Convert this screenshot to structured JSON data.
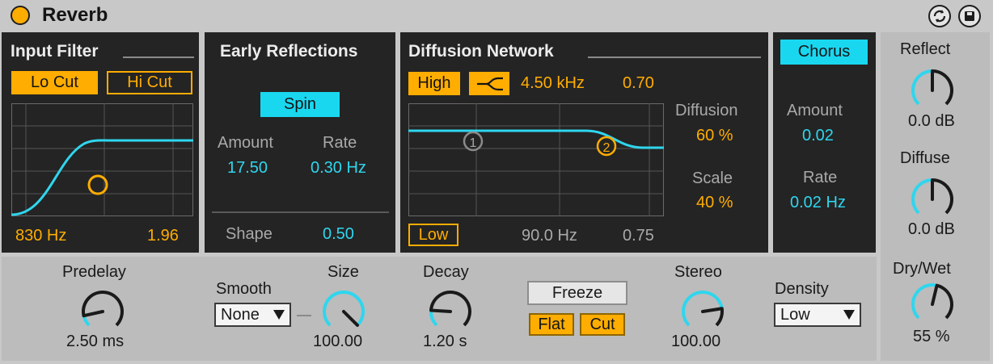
{
  "device": {
    "title": "Reverb"
  },
  "input_filter": {
    "title": "Input Filter",
    "lo_cut": "Lo Cut",
    "hi_cut": "Hi Cut",
    "freq": "830 Hz",
    "q": "1.96"
  },
  "early_reflections": {
    "title": "Early Reflections",
    "spin": "Spin",
    "amount_label": "Amount",
    "amount_value": "17.50",
    "rate_label": "Rate",
    "rate_value": "0.30 Hz",
    "shape_label": "Shape",
    "shape_value": "0.50"
  },
  "diffusion_network": {
    "title": "Diffusion Network",
    "high": "High",
    "high_freq": "4.50 kHz",
    "high_value": "0.70",
    "low": "Low",
    "low_freq": "90.0 Hz",
    "low_value": "0.75",
    "diffusion_label": "Diffusion",
    "diffusion_value": "60 %",
    "scale_label": "Scale",
    "scale_value": "40 %",
    "marker1": "1",
    "marker2": "2"
  },
  "chorus": {
    "title": "Chorus",
    "amount_label": "Amount",
    "amount_value": "0.02",
    "rate_label": "Rate",
    "rate_value": "0.02 Hz"
  },
  "bottom": {
    "predelay_label": "Predelay",
    "predelay_value": "2.50 ms",
    "smooth_label": "Smooth",
    "smooth_value": "None",
    "size_label": "Size",
    "size_value": "100.00",
    "decay_label": "Decay",
    "decay_value": "1.20 s",
    "freeze": "Freeze",
    "flat": "Flat",
    "cut": "Cut",
    "stereo_label": "Stereo",
    "stereo_value": "100.00",
    "density_label": "Density",
    "density_value": "Low"
  },
  "right": {
    "reflect_label": "Reflect",
    "reflect_value": "0.0 dB",
    "diffuse_label": "Diffuse",
    "diffuse_value": "0.0 dB",
    "drywet_label": "Dry/Wet",
    "drywet_value": "55 %"
  },
  "colors": {
    "accent_cyan": "#2fd6ee",
    "accent_orange": "#ffad00",
    "panel": "#242424",
    "frame": "#c8c8c8"
  },
  "knob_levels": {
    "predelay": 0.12,
    "size": 1.0,
    "decay": 0.18,
    "stereo": 0.8,
    "reflect": 0.5,
    "diffuse": 0.5,
    "drywet": 0.55
  }
}
